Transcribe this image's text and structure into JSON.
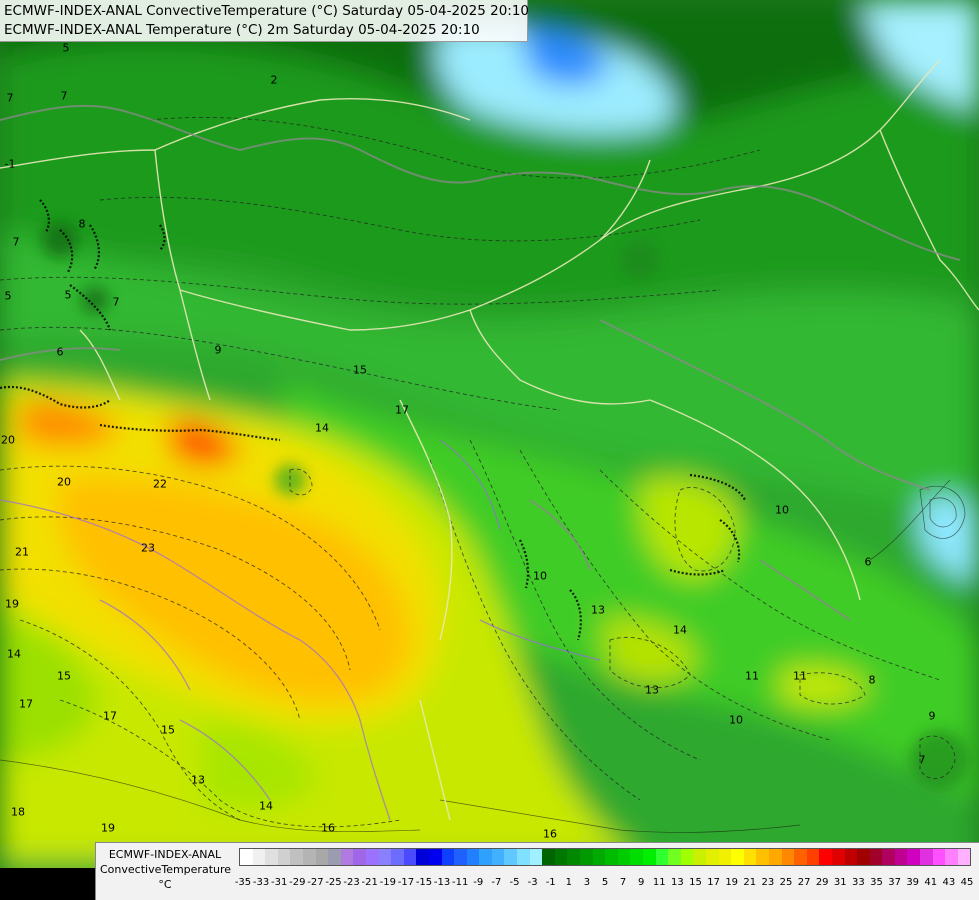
{
  "titles": {
    "line1": "ECMWF-INDEX-ANAL ConvectiveTemperature (°C) Saturday 05-04-2025 20:10",
    "line2": "ECMWF-INDEX-ANAL Temperature (°C) 2m Saturday 05-04-2025 20:10"
  },
  "legend": {
    "line1": "ECMWF-INDEX-ANAL",
    "line2": "ConvectiveTemperature",
    "unit": "°C",
    "ticks": [
      "-35",
      "-33",
      "-31",
      "-29",
      "-27",
      "-25",
      "-23",
      "-21",
      "-19",
      "-17",
      "-15",
      "-13",
      "-11",
      "-9",
      "-7",
      "-5",
      "-3",
      "-1",
      "1",
      "3",
      "5",
      "7",
      "9",
      "11",
      "13",
      "15",
      "17",
      "19",
      "21",
      "23",
      "25",
      "27",
      "29",
      "31",
      "33",
      "35",
      "37",
      "39",
      "41",
      "43",
      "45"
    ],
    "colors": [
      "#ffffff",
      "#f0f0f0",
      "#e0e0e0",
      "#d0d0d0",
      "#c0c0c0",
      "#b4b4b4",
      "#a8a8a8",
      "#9c9cb0",
      "#b07ae0",
      "#a066e8",
      "#9a72ff",
      "#8a80ff",
      "#6c6cff",
      "#4a4aff",
      "#0000d8",
      "#0000f0",
      "#1040ff",
      "#2060ff",
      "#2080ff",
      "#30a0ff",
      "#40b0ff",
      "#60c8ff",
      "#80e0ff",
      "#a0f0ff",
      "#006400",
      "#007800",
      "#008800",
      "#009a00",
      "#00aa00",
      "#00bc00",
      "#00cc00",
      "#00dd00",
      "#00ee00",
      "#30ff30",
      "#70ff20",
      "#a0ff00",
      "#c8f000",
      "#e0f000",
      "#f0f000",
      "#ffff00",
      "#ffe000",
      "#ffc000",
      "#ffa800",
      "#ff8800",
      "#ff6000",
      "#ff4000",
      "#ff0000",
      "#e00000",
      "#c00000",
      "#a00000",
      "#a0002a",
      "#b00060",
      "#c00090",
      "#d000c0",
      "#e030e0",
      "#ff50ff",
      "#ff80ff",
      "#ffb0ff"
    ]
  },
  "isotherm_labels": [
    "5",
    "7",
    "2",
    "7",
    "5",
    "8",
    "-1",
    "7",
    "9",
    "5",
    "6",
    "7",
    "17",
    "15",
    "14",
    "20",
    "20",
    "22",
    "21",
    "23",
    "19",
    "14",
    "15",
    "17",
    "17",
    "15",
    "13",
    "14",
    "16",
    "16",
    "18",
    "19",
    "10",
    "10",
    "13",
    "14",
    "11",
    "11",
    "10",
    "8",
    "9",
    "7",
    "6",
    "13"
  ]
}
